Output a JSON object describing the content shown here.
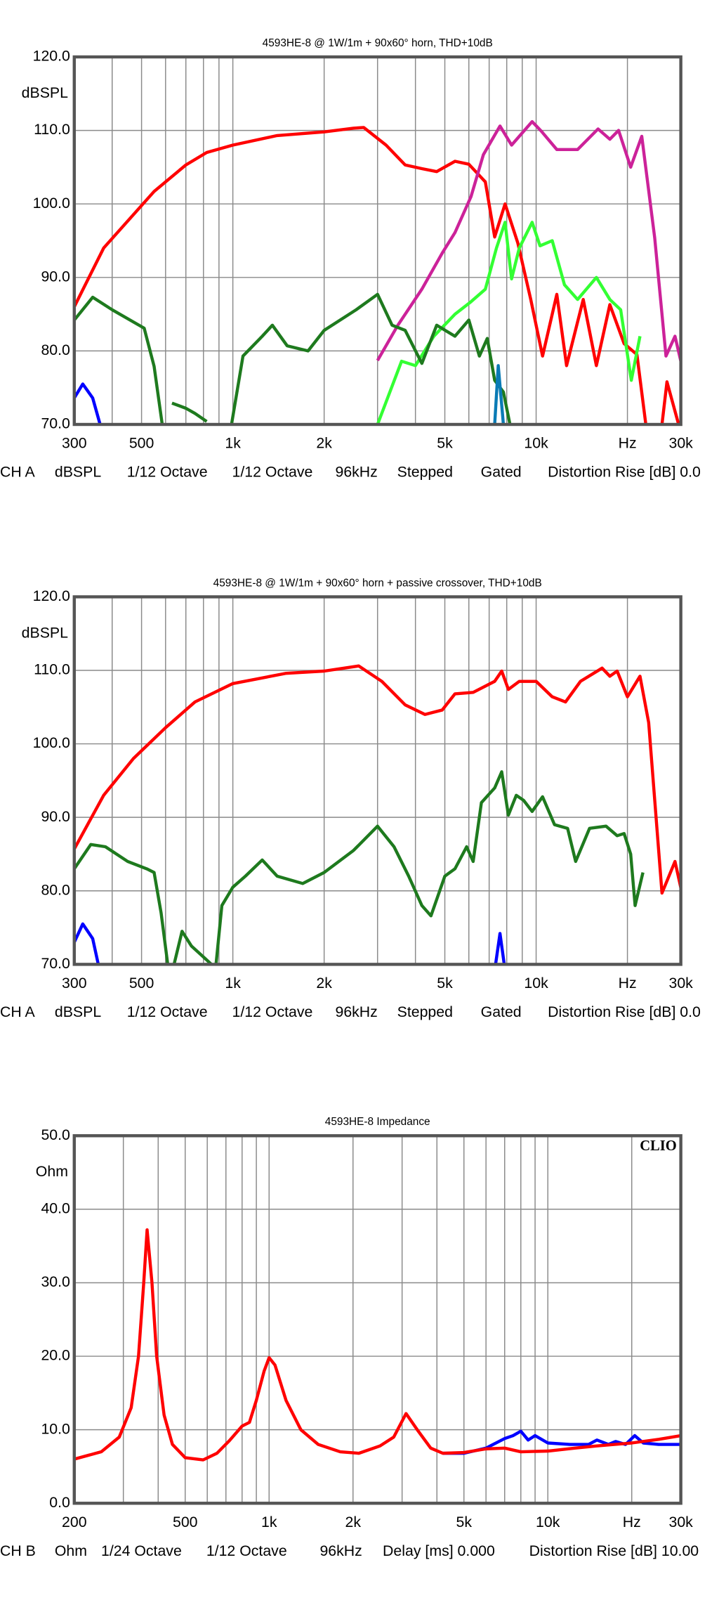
{
  "chart_data": [
    {
      "type": "line",
      "title": "4593HE-8 @ 1W/1m + 90x60° horn, THD+10dB",
      "ylabel": "dBSPL",
      "log_x": true,
      "grid": true,
      "xlim": [
        300,
        30000
      ],
      "ylim": [
        70,
        120
      ],
      "xticks": [
        300,
        500,
        {
          "value": 1000,
          "label": "1k"
        },
        {
          "value": 2000,
          "label": "2k"
        },
        {
          "value": 5000,
          "label": "5k"
        },
        {
          "value": 10000,
          "label": "10k"
        },
        {
          "value": 20000,
          "label": "Hz"
        },
        {
          "value": 30000,
          "label": "30k"
        }
      ],
      "xgrid": [
        400,
        600,
        700,
        800,
        900,
        3000,
        4000,
        6000,
        7000,
        8000,
        9000
      ],
      "yticks": [
        {
          "value": 70,
          "label": "70.0"
        },
        {
          "value": 80,
          "label": "80.0"
        },
        {
          "value": 90,
          "label": "90.0"
        },
        {
          "value": 100,
          "label": "100.0"
        },
        {
          "value": 110,
          "label": "110.0"
        },
        {
          "value": 120,
          "label": "120.0"
        }
      ],
      "footer": [
        "CH A",
        "dBSPL",
        "1/12 Octave",
        "1/12 Octave",
        "96kHz",
        "Stepped",
        "Gated",
        "Distortion Rise [dB] 0.0"
      ],
      "series": [
        {
          "color": "#ff0000",
          "x": [
            300,
            375,
            550,
            700,
            820,
            1000,
            1400,
            2000,
            2500,
            2700,
            3200,
            3700,
            4200,
            4700,
            5400,
            6000,
            6800,
            7300,
            7900,
            8700,
            9600,
            10500,
            11700,
            12600,
            14300,
            15800,
            17500,
            19500,
            21500,
            23000,
            24500,
            26000,
            27000,
            29500
          ],
          "values": [
            86,
            94,
            101.7,
            105.3,
            107,
            108,
            109.3,
            109.8,
            110.3,
            110.4,
            108,
            105.3,
            104.8,
            104.4,
            105.8,
            105.4,
            103,
            95.5,
            100,
            94.7,
            87,
            79.3,
            87.7,
            78,
            87,
            78,
            86.3,
            81,
            79.5,
            70,
            null,
            70,
            75.8,
            70
          ]
        },
        {
          "color": "#cc2299",
          "x": [
            3000,
            3500,
            4200,
            4900,
            5400,
            6100,
            6700,
            7600,
            8300,
            9700,
            10400,
            11700,
            13700,
            16000,
            17500,
            18700,
            20500,
            22300,
            24600,
            26800,
            28700,
            30000
          ],
          "values": [
            78.7,
            83.5,
            88.4,
            93.3,
            96.1,
            101,
            106.7,
            110.6,
            108,
            111.2,
            109.9,
            107.4,
            107.4,
            110.2,
            108.8,
            110,
            105,
            109.2,
            95.4,
            79.3,
            82,
            78.6
          ]
        },
        {
          "color": "#33ff33",
          "x": [
            3000,
            3600,
            4000,
            4600,
            5400,
            6100,
            6800,
            7400,
            7900,
            8300,
            8800,
            9700,
            10300,
            11300,
            12400,
            13700,
            15800,
            17500,
            19000,
            20600,
            22000
          ],
          "values": [
            70,
            78.6,
            78,
            82,
            85,
            86.7,
            88.4,
            94,
            97.5,
            89.8,
            94,
            97.5,
            94.3,
            95,
            89,
            87,
            90,
            87,
            85.6,
            76,
            82
          ]
        },
        {
          "color": "#1e7a1e",
          "x": [
            300,
            345,
            400,
            510,
            550,
            585,
            600,
            630,
            700,
            750,
            820,
            850,
            990,
            1080,
            1250,
            1350,
            1510,
            1770,
            2000,
            2550,
            3000,
            3350,
            3700,
            4200,
            4700,
            5400,
            6000,
            6500,
            6900,
            7300,
            7800,
            8200
          ],
          "values": [
            84.2,
            87.3,
            85.6,
            83.1,
            77.9,
            70,
            null,
            72.9,
            72.2,
            71.5,
            70.4,
            null,
            70,
            79.3,
            82,
            83.5,
            80.7,
            80,
            82.8,
            85.6,
            87.7,
            83.5,
            82.8,
            78.3,
            83.5,
            82,
            84.2,
            79.3,
            81.7,
            76,
            74.4,
            70
          ]
        },
        {
          "color": "#0000ff",
          "x": [
            300,
            320,
            345,
            365
          ],
          "values": [
            73.6,
            75.5,
            73.6,
            70
          ]
        },
        {
          "color": "#0a7bb5",
          "x": [
            7300,
            7500,
            7800
          ],
          "values": [
            70,
            78,
            70
          ]
        }
      ]
    },
    {
      "type": "line",
      "title": "4593HE-8 @ 1W/1m + 90x60° horn + passive crossover, THD+10dB",
      "ylabel": "dBSPL",
      "log_x": true,
      "grid": true,
      "xlim": [
        300,
        30000
      ],
      "ylim": [
        70,
        120
      ],
      "xticks": [
        300,
        500,
        {
          "value": 1000,
          "label": "1k"
        },
        {
          "value": 2000,
          "label": "2k"
        },
        {
          "value": 5000,
          "label": "5k"
        },
        {
          "value": 10000,
          "label": "10k"
        },
        {
          "value": 20000,
          "label": "Hz"
        },
        {
          "value": 30000,
          "label": "30k"
        }
      ],
      "xgrid": [
        400,
        600,
        700,
        800,
        900,
        3000,
        4000,
        6000,
        7000,
        8000,
        9000
      ],
      "yticks": [
        {
          "value": 70,
          "label": "70.0"
        },
        {
          "value": 80,
          "label": "80.0"
        },
        {
          "value": 90,
          "label": "90.0"
        },
        {
          "value": 100,
          "label": "100.0"
        },
        {
          "value": 110,
          "label": "110.0"
        },
        {
          "value": 120,
          "label": "120.0"
        }
      ],
      "footer": [
        "CH A",
        "dBSPL",
        "1/12 Octave",
        "1/12 Octave",
        "96kHz",
        "Stepped",
        "Gated",
        "Distortion Rise [dB] 0.0"
      ],
      "series": [
        {
          "color": "#ff0000",
          "x": [
            300,
            375,
            470,
            600,
            750,
            1000,
            1500,
            2000,
            2600,
            3100,
            3700,
            4300,
            4900,
            5400,
            6200,
            7300,
            7700,
            8100,
            8800,
            10000,
            11300,
            12500,
            14000,
            16500,
            17500,
            18500,
            20000,
            22000,
            23500,
            26000,
            28700,
            30000
          ],
          "values": [
            85.7,
            93,
            98,
            102.2,
            105.7,
            108.2,
            109.6,
            109.9,
            110.6,
            108.5,
            105.3,
            104,
            104.6,
            106.8,
            107,
            108.5,
            109.9,
            107.4,
            108.5,
            108.5,
            106.4,
            105.7,
            108.5,
            110.3,
            109.2,
            109.9,
            106.4,
            109.2,
            102.9,
            79.7,
            84,
            80.4
          ]
        },
        {
          "color": "#1e7a1e",
          "x": [
            300,
            340,
            380,
            450,
            520,
            550,
            580,
            610,
            625,
            640,
            680,
            730,
            800,
            850,
            865,
            880,
            920,
            1000,
            1100,
            1250,
            1400,
            1700,
            2000,
            2500,
            3000,
            3400,
            3800,
            4200,
            4500,
            5000,
            5400,
            5900,
            6200,
            6600,
            7300,
            7700,
            8100,
            8600,
            9100,
            9700,
            10500,
            11500,
            12700,
            13500,
            15000,
            17000,
            18500,
            19500,
            20500,
            21200,
            22500
          ],
          "values": [
            83,
            86.3,
            86,
            84,
            83,
            82.5,
            77,
            70,
            null,
            70,
            74.5,
            72.5,
            71,
            70,
            null,
            70,
            78,
            80.5,
            82,
            84.2,
            82,
            81,
            82.5,
            85.5,
            88.8,
            86,
            82,
            78,
            76.6,
            82,
            83,
            86,
            84,
            92,
            94,
            96.2,
            90.3,
            93,
            92.3,
            90.8,
            92.8,
            89,
            88.5,
            84,
            88.5,
            88.8,
            87.5,
            87.8,
            85,
            78,
            82.5
          ]
        },
        {
          "color": "#0000ff",
          "x": [
            300,
            320,
            345,
            360,
            7000,
            7350,
            7600,
            7850
          ],
          "values": [
            73,
            75.5,
            73.5,
            70,
            null,
            70,
            74.2,
            70
          ]
        }
      ]
    },
    {
      "type": "line",
      "title": "4593HE-8 Impedance",
      "ylabel": "Ohm",
      "logo": "CLIO",
      "log_x": true,
      "grid": true,
      "xlim": [
        200,
        30000
      ],
      "ylim": [
        0,
        50
      ],
      "xticks": [
        200,
        500,
        {
          "value": 1000,
          "label": "1k"
        },
        {
          "value": 2000,
          "label": "2k"
        },
        {
          "value": 5000,
          "label": "5k"
        },
        {
          "value": 10000,
          "label": "10k"
        },
        {
          "value": 20000,
          "label": "Hz"
        },
        {
          "value": 30000,
          "label": "30k"
        }
      ],
      "xgrid": [
        300,
        400,
        600,
        700,
        800,
        900,
        3000,
        4000,
        6000,
        7000,
        8000,
        9000
      ],
      "yticks": [
        {
          "value": 0,
          "label": "0.0"
        },
        {
          "value": 10,
          "label": "10.0"
        },
        {
          "value": 20,
          "label": "20.0"
        },
        {
          "value": 30,
          "label": "30.0"
        },
        {
          "value": 40,
          "label": "40.0"
        },
        {
          "value": 50,
          "label": "50.0"
        }
      ],
      "footer": [
        "CH B",
        "Ohm",
        "1/24 Octave",
        "1/12 Octave",
        "96kHz",
        "Delay [ms] 0.000",
        "Distortion Rise [dB] 10.00"
      ],
      "series": [
        {
          "color": "#0000ff",
          "x": [
            4200,
            5000,
            6000,
            7000,
            7500,
            8000,
            8500,
            9000,
            10000,
            12000,
            14000,
            15000,
            16500,
            17500,
            19000,
            20500,
            22000,
            25000,
            30000
          ],
          "values": [
            6.8,
            6.8,
            7.5,
            8.8,
            9.2,
            9.8,
            8.6,
            9.2,
            8.2,
            8,
            8,
            8.6,
            8,
            8.4,
            8,
            9.2,
            8.2,
            8,
            8
          ]
        },
        {
          "color": "#ff0000",
          "x": [
            200,
            250,
            290,
            320,
            340,
            355,
            365,
            380,
            395,
            420,
            450,
            500,
            580,
            650,
            720,
            800,
            850,
            900,
            960,
            1000,
            1050,
            1150,
            1300,
            1500,
            1800,
            2100,
            2500,
            2800,
            3100,
            3400,
            3800,
            4200,
            5000,
            6000,
            7000,
            8000,
            10000,
            12500,
            15000,
            20000,
            25000,
            30000
          ],
          "values": [
            6,
            7,
            9,
            13,
            20,
            30,
            37.2,
            30,
            20,
            12,
            8,
            6.2,
            5.9,
            6.8,
            8.5,
            10.5,
            11,
            14,
            18,
            19.8,
            18.8,
            14,
            10,
            8,
            7,
            6.8,
            7.8,
            9,
            12.2,
            10,
            7.5,
            6.8,
            6.9,
            7.4,
            7.5,
            7,
            7.1,
            7.5,
            7.8,
            8.2,
            8.7,
            9.2
          ]
        }
      ]
    }
  ]
}
